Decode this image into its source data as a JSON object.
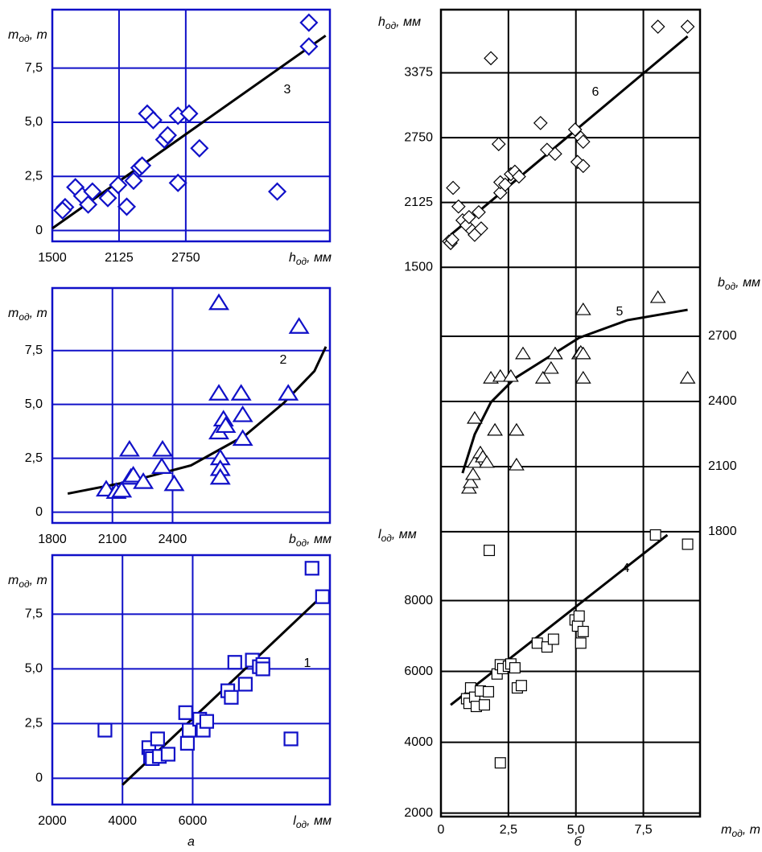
{
  "chart_data": [
    {
      "type": "scatter",
      "color": "#1010c8",
      "marker": "diamond",
      "grid": true,
      "x_label": {
        "symbol": "h",
        "sub": "од",
        "unit": ", мм"
      },
      "y_label": {
        "symbol": "m",
        "sub": "од",
        "unit": ", т"
      },
      "xlim": [
        1500,
        4100
      ],
      "xticks": [
        1500,
        2125,
        2750
      ],
      "ylim": [
        -0.5,
        10.2
      ],
      "yticks": [
        0,
        {
          "value": 2.5,
          "label": "2,5"
        },
        {
          "value": 5,
          "label": "5,0"
        },
        {
          "value": 7.5,
          "label": "7,5"
        }
      ],
      "points": {
        "x": [
          1620,
          1596,
          1716,
          1780,
          1836,
          1876,
          2020,
          2117,
          2197,
          2261,
          2317,
          2341,
          2389,
          2445,
          2549,
          2581,
          2677,
          2677,
          2781,
          2878,
          3607,
          3903,
          3903
        ],
        "values": [
          1.08,
          0.93,
          2.0,
          1.6,
          1.2,
          1.8,
          1.5,
          2.1,
          1.1,
          2.3,
          2.9,
          3.0,
          5.4,
          5.1,
          4.2,
          4.4,
          5.3,
          2.2,
          5.4,
          3.8,
          1.8,
          8.5,
          9.6
        ]
      },
      "trend": {
        "label": "3",
        "x": [
          1500,
          4060
        ],
        "values": [
          0.1,
          9.0
        ]
      }
    },
    {
      "type": "scatter",
      "color": "#1010c8",
      "marker": "triangle",
      "grid": true,
      "x_label": {
        "symbol": "b",
        "sub": "од",
        "unit": ", мм"
      },
      "y_label": {
        "symbol": "m",
        "sub": "од",
        "unit": ", т"
      },
      "xlim": [
        1800,
        3185
      ],
      "xticks": [
        1800,
        2100,
        2400
      ],
      "ylim": [
        -0.5,
        10.4
      ],
      "yticks": [
        0,
        {
          "value": 2.5,
          "label": "2,5"
        },
        {
          "value": 5,
          "label": "5,0"
        },
        {
          "value": 7.5,
          "label": "7,5"
        }
      ],
      "points": {
        "x": [
          2069,
          2119,
          2146,
          2185,
          2192,
          2204,
          2254,
          2350,
          2346,
          2408,
          2631,
          2631,
          2631,
          2638,
          2638,
          2638,
          2654,
          2665,
          2742,
          2750,
          2750,
          2977,
          3031
        ],
        "values": [
          1.05,
          0.94,
          1.0,
          2.9,
          1.6,
          1.7,
          1.4,
          2.9,
          2.1,
          1.3,
          9.7,
          5.5,
          3.7,
          2.5,
          2.0,
          1.6,
          4.3,
          4.0,
          5.5,
          4.5,
          3.4,
          5.5,
          8.6
        ]
      },
      "trend": {
        "label": "2",
        "x": [
          1877,
          2185,
          2492,
          2762,
          2954,
          3108,
          3165
        ],
        "values": [
          0.86,
          1.42,
          2.17,
          3.56,
          5.06,
          6.55,
          7.68
        ]
      }
    },
    {
      "type": "scatter",
      "color": "#1010c8",
      "marker": "square",
      "grid": true,
      "caption": "а",
      "x_label": {
        "symbol": "l",
        "sub": "од",
        "unit": ", мм"
      },
      "y_label": {
        "symbol": "m",
        "sub": "од",
        "unit": ", т"
      },
      "xlim": [
        2000,
        9910
      ],
      "xticks": [
        2000,
        4000,
        6000
      ],
      "ylim": [
        -1.2,
        10.2
      ],
      "yticks": [
        0,
        {
          "value": 2.5,
          "label": "2,5"
        },
        {
          "value": 5,
          "label": "5,0"
        },
        {
          "value": 7.5,
          "label": "7,5"
        }
      ],
      "points": {
        "x": [
          3500,
          4750,
          4800,
          4850,
          5000,
          5050,
          5300,
          5800,
          5850,
          5900,
          6200,
          6300,
          6400,
          7000,
          7100,
          7200,
          7500,
          7700,
          7900,
          8000,
          8000,
          8800,
          9400,
          9700
        ],
        "values": [
          2.2,
          1.4,
          1.0,
          0.9,
          1.8,
          1.0,
          1.1,
          3.0,
          1.6,
          2.2,
          2.7,
          2.2,
          2.6,
          4.0,
          3.7,
          5.3,
          4.3,
          5.4,
          5.1,
          5.2,
          5.0,
          1.8,
          9.6,
          8.3
        ]
      },
      "trend": {
        "label": "1",
        "x": [
          4000,
          9800
        ],
        "values": [
          -0.3,
          8.5
        ]
      }
    },
    {
      "type": "scatter",
      "color": "#000000",
      "grid": true,
      "caption": "б",
      "x_label": {
        "symbol": "m",
        "sub": "од",
        "unit": ", т"
      },
      "xlim": [
        0,
        9.6
      ],
      "xticks": [
        0,
        {
          "value": 2.5,
          "label": "2,5"
        },
        {
          "value": 5,
          "label": "5,0"
        },
        {
          "value": 7.5,
          "label": "7,5"
        }
      ],
      "y_axes": [
        {
          "side": "left",
          "marker": "diamond",
          "label": {
            "symbol": "h",
            "sub": "од",
            "unit": ", мм"
          },
          "ylim": [
            1440,
            3984
          ],
          "yticks": [
            1500,
            2125,
            2750,
            3375
          ],
          "points": {
            "x": [
              0.3,
              0.36,
              0.42,
              0.45,
              0.65,
              0.8,
              0.95,
              1.04,
              1.16,
              1.25,
              1.4,
              1.49,
              1.85,
              2.14,
              2.2,
              2.2,
              2.38,
              2.59,
              2.74,
              2.89,
              3.69,
              3.93,
              4.23,
              4.97,
              5.06,
              5.18,
              5.27,
              5.27,
              8.04,
              9.14
            ],
            "values": [
              1750,
              1734,
              1766,
              2266,
              2086,
              1953,
              1906,
              1984,
              1852,
              1813,
              2031,
              1875,
              3516,
              2688,
              2219,
              2320,
              2297,
              2398,
              2422,
              2375,
              2891,
              2633,
              2594,
              2828,
              2516,
              2750,
              2711,
              2477,
              3820,
              3820
            ]
          },
          "trend": {
            "label": "6",
            "x": [
              0.36,
              9.14
            ],
            "values": [
              1813,
              3727
            ]
          }
        },
        {
          "side": "right",
          "marker": "triangle",
          "label": {
            "symbol": "b",
            "sub": "од",
            "unit": ", мм"
          },
          "ylim": [
            1796,
            2989
          ],
          "yticks": [
            1800,
            2100,
            2400,
            2700
          ],
          "points": {
            "x": [
              1.04,
              1.1,
              1.19,
              1.25,
              1.25,
              1.46,
              1.55,
              1.7,
              1.85,
              2.0,
              2.2,
              2.59,
              2.8,
              2.8,
              3.04,
              3.78,
              4.08,
              4.23,
              5.12,
              5.18,
              5.27,
              5.27,
              5.27,
              8.04,
              9.14
            ],
            "values": [
              2000,
              2026,
              2063,
              2119,
              2322,
              2163,
              2144,
              2119,
              2507,
              2267,
              2515,
              2515,
              2267,
              2107,
              2619,
              2507,
              2552,
              2619,
              2619,
              2626,
              2619,
              2507,
              2822,
              2878,
              2507
            ]
          },
          "trend": {
            "label": "5",
            "x": [
              0.8,
              1.25,
              1.85,
              2.74,
              3.93,
              5.12,
              6.9,
              9.14
            ],
            "values": [
              2070,
              2248,
              2396,
              2507,
              2600,
              2693,
              2774,
              2822
            ]
          }
        },
        {
          "side": "left",
          "marker": "square",
          "label": {
            "symbol": "l",
            "sub": "од",
            "unit": ", мм"
          },
          "ylim": [
            1900,
            9921
          ],
          "yticks": [
            2000,
            4000,
            6000,
            8000
          ],
          "points": {
            "x": [
              0.95,
              1.04,
              1.1,
              1.25,
              1.31,
              1.46,
              1.61,
              1.76,
              1.79,
              2.08,
              2.2,
              2.29,
              2.5,
              2.59,
              2.74,
              2.83,
              2.98,
              3.57,
              3.93,
              4.17,
              4.97,
              5.06,
              5.12,
              5.18,
              5.27,
              2.2,
              7.95,
              9.14
            ],
            "values": [
              5229,
              5098,
              5535,
              5273,
              5011,
              5448,
              5055,
              5426,
              9419,
              5928,
              6189,
              6080,
              6146,
              6211,
              6102,
              5535,
              5600,
              6800,
              6691,
              6910,
              7455,
              7281,
              7564,
              6800,
              7128,
              3418,
              9855,
              9593
            ]
          },
          "trend": {
            "label": "4",
            "x": [
              0.36,
              8.39
            ],
            "values": [
              5055,
              9855
            ]
          }
        }
      ]
    }
  ]
}
